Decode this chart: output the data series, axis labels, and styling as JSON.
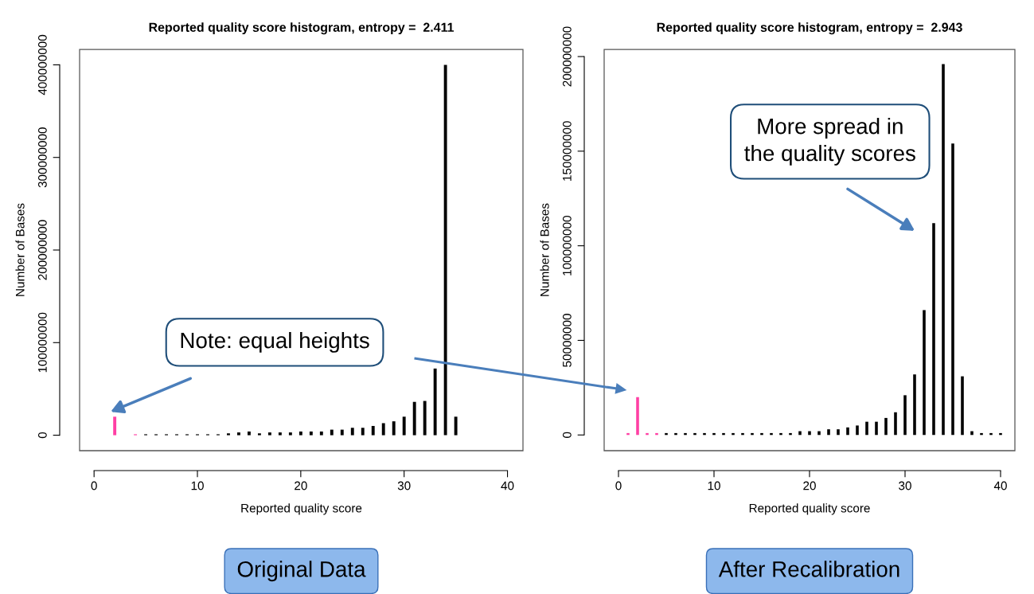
{
  "chart_data": [
    {
      "type": "bar",
      "title": "Reported quality score histogram, entropy =  2.411",
      "xlabel": "Reported quality score",
      "ylabel": "Number of Bases",
      "x": [
        2,
        4,
        5,
        6,
        7,
        8,
        9,
        10,
        11,
        12,
        13,
        14,
        15,
        16,
        17,
        18,
        19,
        20,
        21,
        22,
        23,
        24,
        25,
        26,
        27,
        28,
        29,
        30,
        31,
        32,
        33,
        34,
        35
      ],
      "values": [
        20000000,
        1000000,
        1000000,
        1000000,
        1000000,
        1000000,
        1000000,
        1000000,
        1000000,
        1000000,
        2000000,
        3000000,
        4000000,
        2000000,
        3000000,
        3000000,
        3000000,
        4000000,
        4000000,
        4000000,
        6000000,
        6000000,
        8000000,
        8000000,
        10000000,
        13000000,
        15000000,
        20000000,
        36000000,
        37000000,
        72000000,
        400000000,
        20000000
      ],
      "colors": [
        "#ff3fa4",
        "#ff3fa4",
        "#000000",
        "#000000",
        "#000000",
        "#000000",
        "#000000",
        "#000000",
        "#000000",
        "#000000",
        "#000000",
        "#000000",
        "#000000",
        "#000000",
        "#000000",
        "#000000",
        "#000000",
        "#000000",
        "#000000",
        "#000000",
        "#000000",
        "#000000",
        "#000000",
        "#000000",
        "#000000",
        "#000000",
        "#000000",
        "#000000",
        "#000000",
        "#000000",
        "#000000",
        "#000000",
        "#000000"
      ],
      "xlim": [
        -1.4,
        41.5
      ],
      "xticks": [
        0,
        10,
        20,
        30,
        40
      ],
      "ylim": [
        -16700000,
        416700000
      ],
      "yticks": [
        0,
        100000000,
        200000000,
        300000000,
        400000000
      ],
      "grid": false,
      "annotations": [
        "Note: equal heights",
        "Original Data"
      ]
    },
    {
      "type": "bar",
      "title": "Reported quality score histogram, entropy =  2.943",
      "xlabel": "Reported quality score",
      "ylabel": "Number of Bases",
      "x": [
        1,
        2,
        3,
        4,
        5,
        6,
        7,
        8,
        9,
        10,
        11,
        12,
        13,
        14,
        15,
        16,
        17,
        18,
        19,
        20,
        21,
        22,
        23,
        24,
        25,
        26,
        27,
        28,
        29,
        30,
        31,
        32,
        33,
        34,
        35,
        36,
        37,
        38,
        39,
        40
      ],
      "values": [
        1000000,
        20000000,
        1000000,
        1000000,
        1000000,
        1000000,
        1000000,
        1000000,
        1000000,
        1000000,
        1000000,
        1000000,
        1000000,
        1000000,
        1000000,
        1000000,
        1000000,
        1000000,
        2000000,
        2000000,
        2000000,
        3000000,
        3000000,
        4000000,
        5000000,
        7000000,
        7000000,
        9000000,
        12000000,
        21000000,
        32000000,
        66000000,
        112000000,
        196000000,
        154000000,
        31000000,
        2000000,
        1000000,
        1000000,
        1000000
      ],
      "colors": [
        "#ff3fa4",
        "#ff3fa4",
        "#ff3fa4",
        "#ff3fa4",
        "#000000",
        "#000000",
        "#000000",
        "#000000",
        "#000000",
        "#000000",
        "#000000",
        "#000000",
        "#000000",
        "#000000",
        "#000000",
        "#000000",
        "#000000",
        "#000000",
        "#000000",
        "#000000",
        "#000000",
        "#000000",
        "#000000",
        "#000000",
        "#000000",
        "#000000",
        "#000000",
        "#000000",
        "#000000",
        "#000000",
        "#000000",
        "#000000",
        "#000000",
        "#000000",
        "#000000",
        "#000000",
        "#000000",
        "#000000",
        "#000000",
        "#000000"
      ],
      "xlim": [
        -1.5,
        41.5
      ],
      "xticks": [
        0,
        10,
        20,
        30,
        40
      ],
      "ylim": [
        -8300000,
        203800000
      ],
      "yticks": [
        0,
        50000000,
        100000000,
        150000000,
        200000000
      ],
      "grid": false,
      "annotations": [
        "More spread in\nthe quality scores",
        "After Recalibration"
      ]
    }
  ]
}
